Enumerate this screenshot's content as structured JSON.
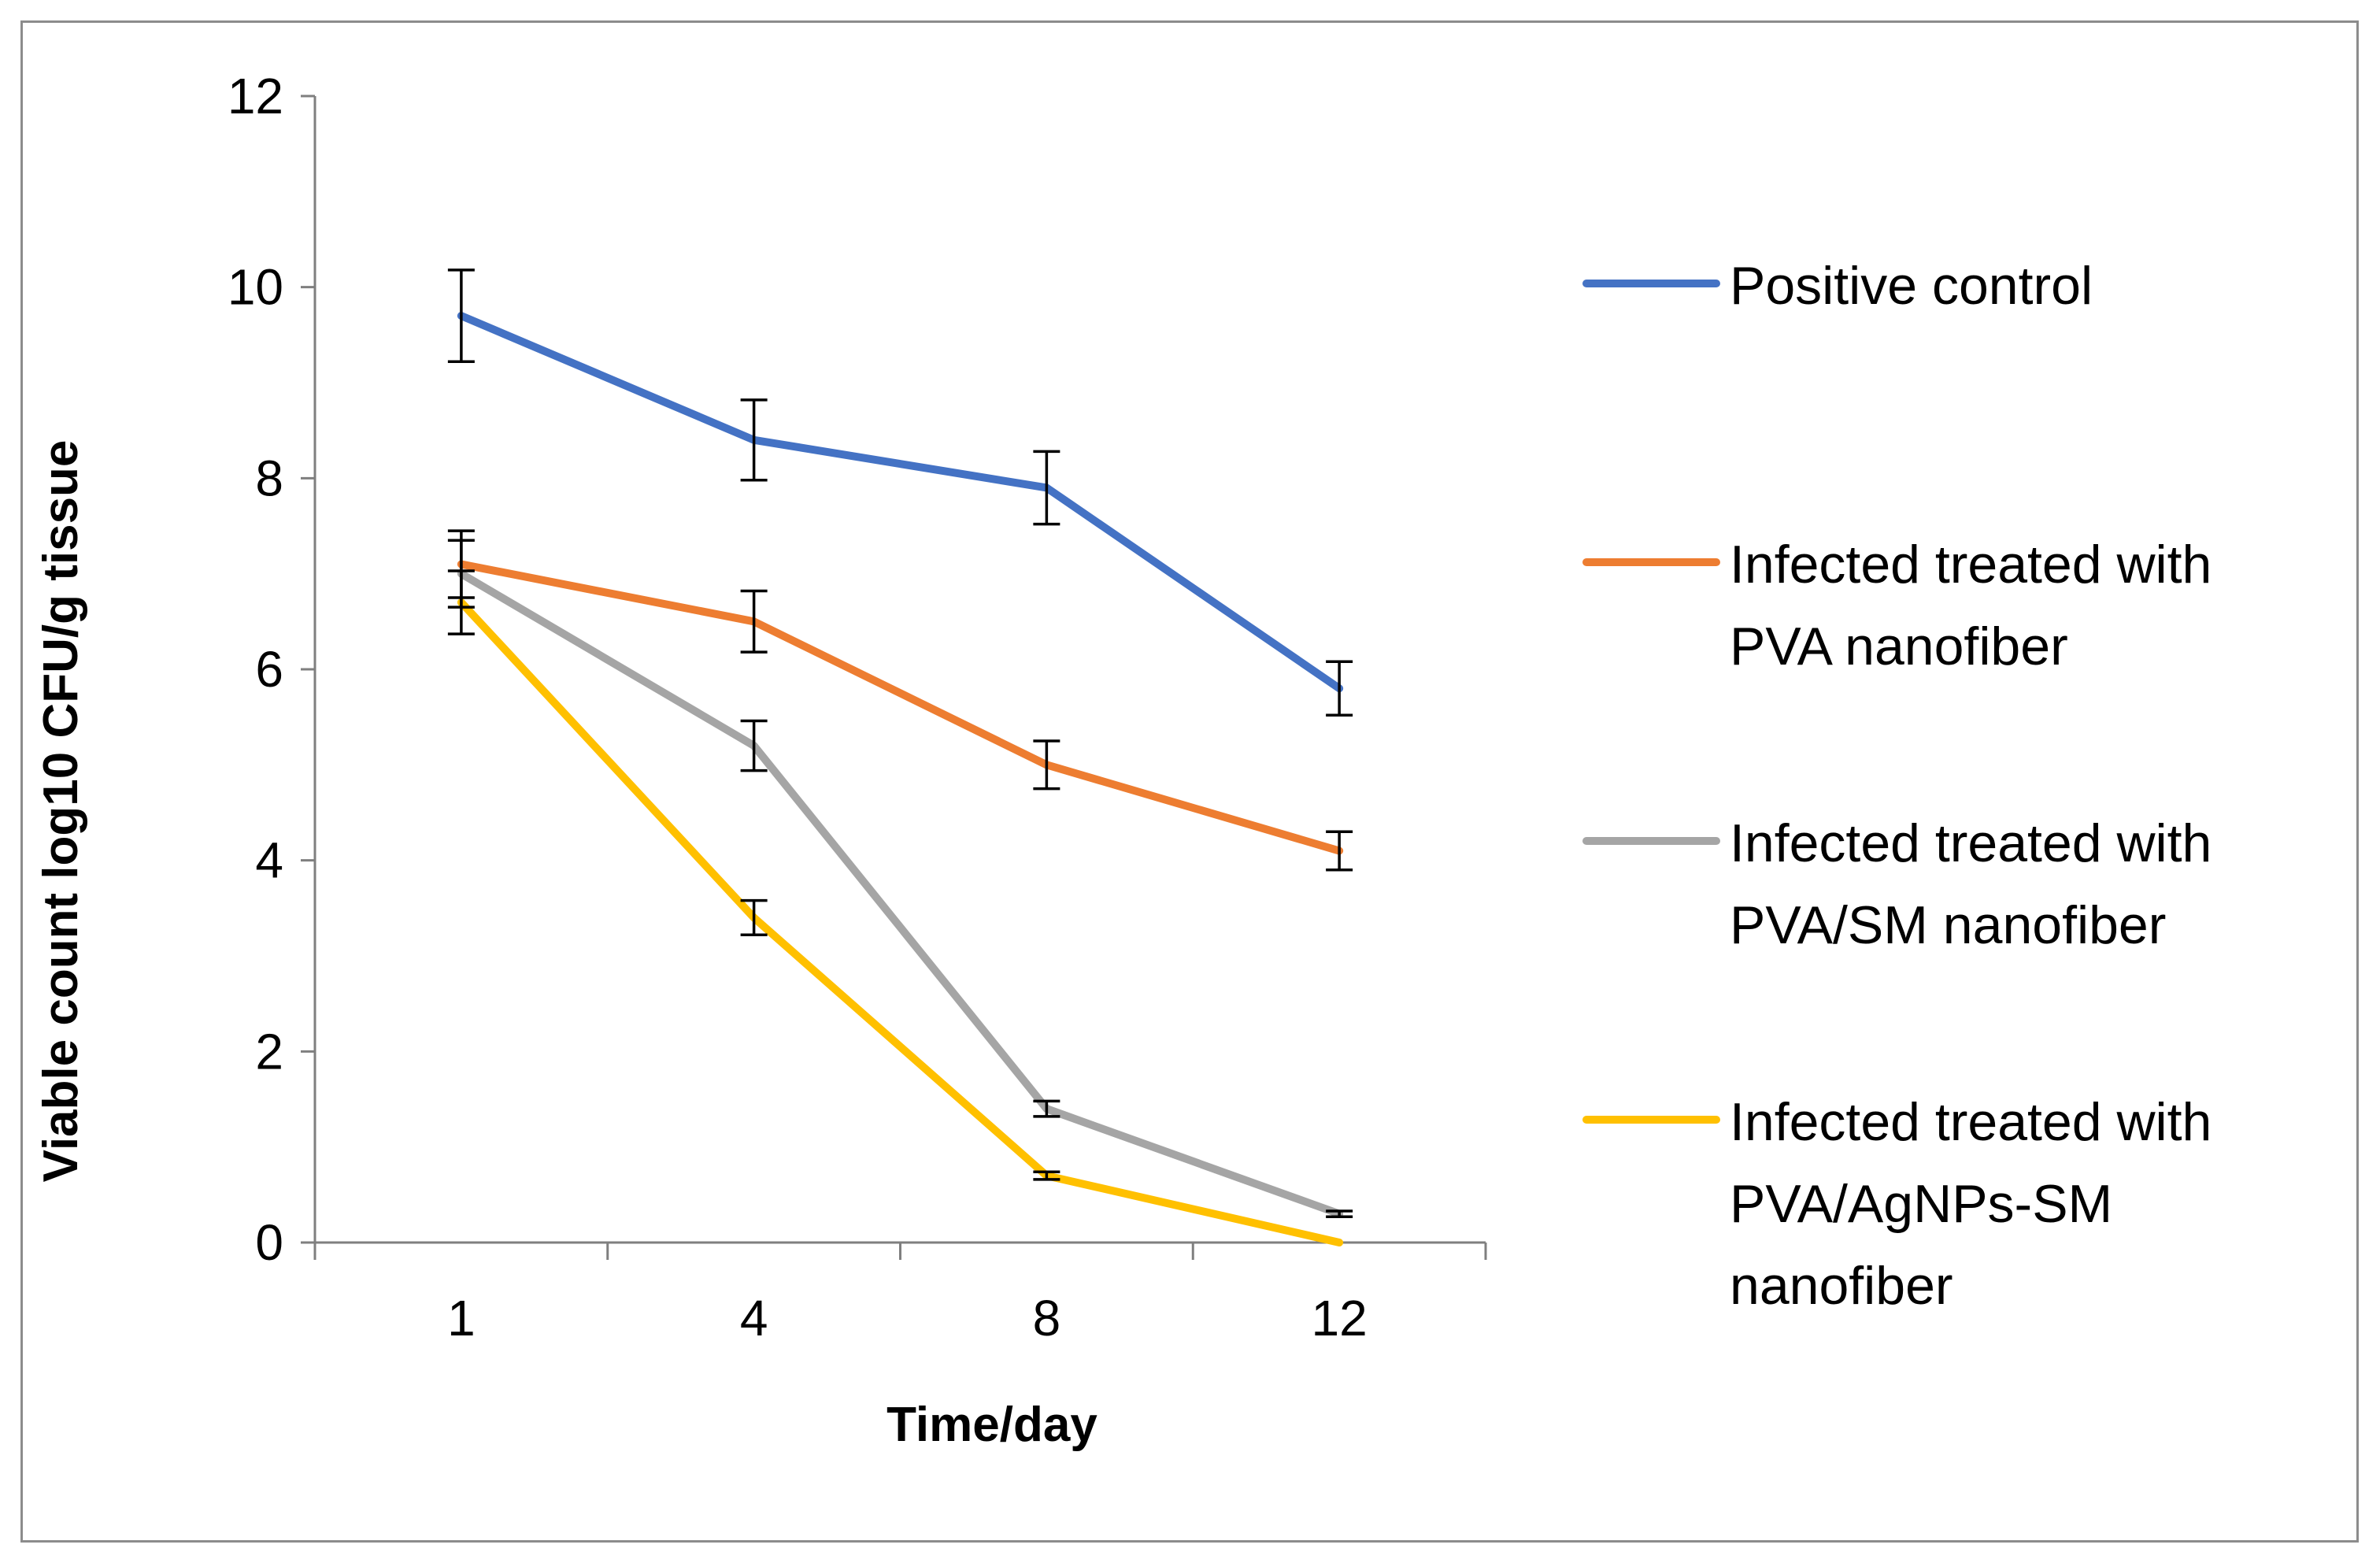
{
  "chart_data": {
    "type": "line",
    "title": "",
    "xlabel": "Time/day",
    "ylabel": "Viable count log10 CFU/g tissue",
    "categories": [
      "1",
      "4",
      "8",
      "12"
    ],
    "ylim": [
      0,
      12
    ],
    "yticks": [
      0,
      2,
      4,
      6,
      8,
      10,
      12
    ],
    "grid": false,
    "legend_position": "right",
    "series": [
      {
        "name": "Positive control",
        "legend_lines": [
          "Positive control"
        ],
        "color": "#4472C4",
        "values": [
          9.7,
          8.4,
          7.9,
          5.8
        ],
        "errors": [
          0.48,
          0.42,
          0.38,
          0.28
        ]
      },
      {
        "name": "Infected treated with PVA nanofiber",
        "legend_lines": [
          "Infected treated with",
          "PVA nanofiber"
        ],
        "color": "#ED7D31",
        "values": [
          7.1,
          6.5,
          5.0,
          4.1
        ],
        "errors": [
          0.35,
          0.32,
          0.25,
          0.2
        ]
      },
      {
        "name": "Infected treated with PVA/SM nanofiber",
        "legend_lines": [
          "Infected treated with",
          "PVA/SM nanofiber"
        ],
        "color": "#A5A5A5",
        "values": [
          7.0,
          5.2,
          1.4,
          0.3
        ],
        "errors": [
          0.35,
          0.26,
          0.08,
          0.03
        ]
      },
      {
        "name": "Infected treated with PVA/AgNPs-SM nanofiber",
        "legend_lines": [
          "Infected treated with",
          "PVA/AgNPs-SM",
          "nanofiber"
        ],
        "color": "#FFC000",
        "values": [
          6.7,
          3.4,
          0.7,
          0.0
        ],
        "errors": [
          0.33,
          0.18,
          0.04,
          0.0
        ]
      }
    ]
  }
}
